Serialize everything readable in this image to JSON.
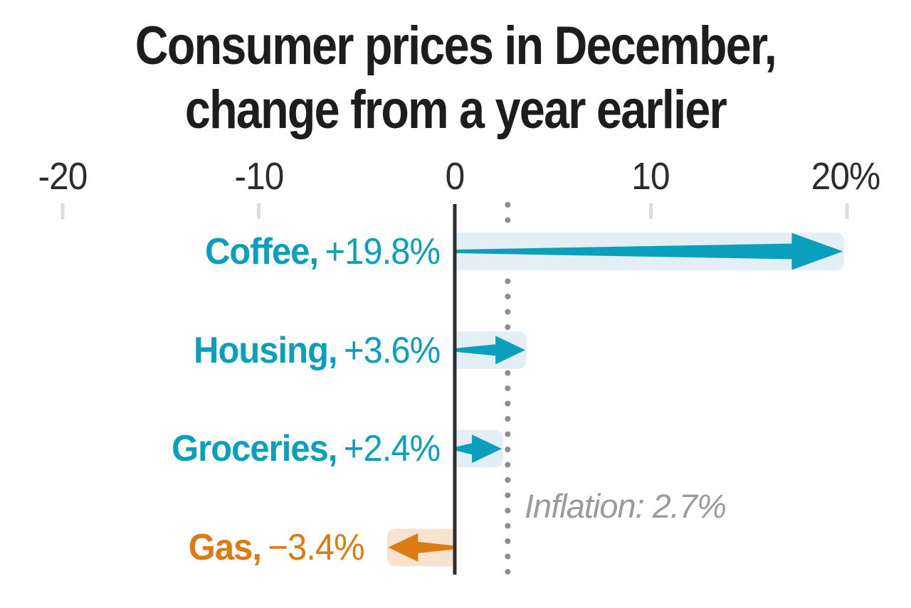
{
  "title": {
    "line1": "Consumer prices in December,",
    "line2": "change from a year earlier"
  },
  "chart_data": {
    "type": "bar",
    "orientation": "horizontal-arrows",
    "title": "Consumer prices in December, change from a year earlier",
    "unit": "percent change year-over-year",
    "xlim": [
      -20,
      20
    ],
    "grid": "off",
    "x_axis": {
      "ticks": [
        {
          "label": "-20",
          "value": -20
        },
        {
          "label": "-10",
          "value": -10
        },
        {
          "label": "0",
          "value": 0
        },
        {
          "label": "10",
          "value": 10
        },
        {
          "label": "20%",
          "value": 20
        }
      ]
    },
    "rows": [
      {
        "key": "coffee",
        "label": "Coffee,",
        "value": 19.8,
        "value_label": "+19.8%",
        "color": "teal"
      },
      {
        "key": "housing",
        "label": "Housing,",
        "value": 3.6,
        "value_label": "+3.6%",
        "color": "teal"
      },
      {
        "key": "groceries",
        "label": "Groceries,",
        "value": 2.4,
        "value_label": "+2.4%",
        "color": "teal"
      },
      {
        "key": "gas",
        "label": "Gas,",
        "value": -3.4,
        "value_label": "−3.4%",
        "color": "orange"
      }
    ],
    "reference_line": {
      "label": "Inflation: 2.7%",
      "value": 2.7,
      "style": "dotted"
    }
  },
  "colors": {
    "teal": "#0a9fbc",
    "teal_band": "#e4eef5",
    "orange": "#dd7a12",
    "orange_band": "#f8e3d1",
    "axis_line": "#2d2d2d",
    "tick_mark": "#dcdcdc",
    "reference_dots": "#8d8d8d",
    "title_text": "#1d1d1d",
    "axis_text": "#2d2d2d",
    "reference_text": "#9b9b9b"
  }
}
